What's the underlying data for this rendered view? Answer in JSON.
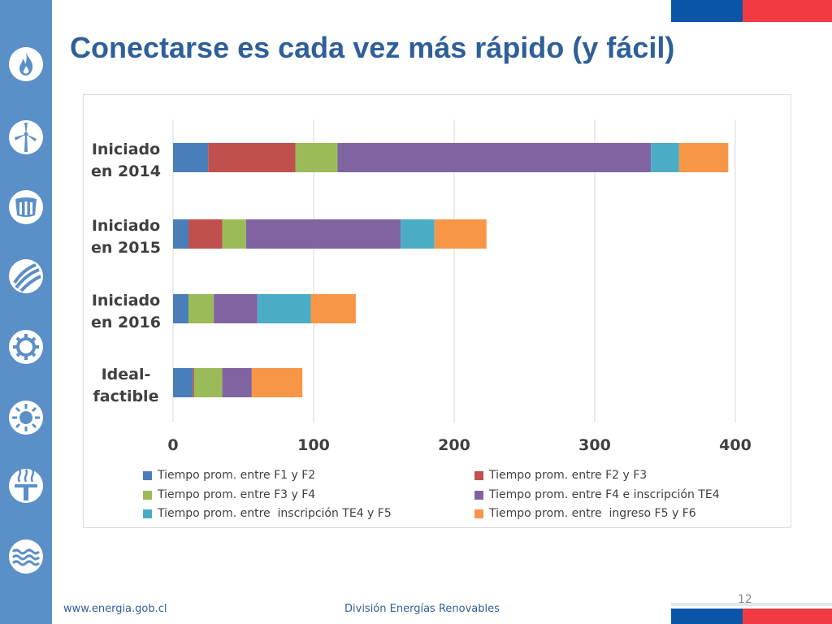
{
  "slide": {
    "title": "Conectarse es cada vez más rápido (y fácil)",
    "footer_url": "www.energia.gob.cl",
    "footer_division": "División Energías Renovables",
    "page_number": "12"
  },
  "sidebar_icons": [
    "flame-icon",
    "wind-turbine-icon",
    "hydro-dam-icon",
    "transmission-lines-icon",
    "efficiency-gear-icon",
    "sun-icon",
    "geothermal-icon",
    "marine-waves-icon"
  ],
  "colors": {
    "sidebar": "#5b8fc7",
    "title": "#2f5f98",
    "flag_blue": "#0a55a8",
    "flag_red": "#f23a43"
  },
  "chart_data": {
    "type": "bar",
    "orientation": "horizontal",
    "stacked": true,
    "categories": [
      "Iniciado en 2014",
      "Iniciado en 2015",
      "Iniciado en 2016",
      "Ideal-factible"
    ],
    "category_lines": [
      [
        "Iniciado",
        "en 2014"
      ],
      [
        "Iniciado",
        "en 2015"
      ],
      [
        "Iniciado",
        "en 2016"
      ],
      [
        "Ideal-",
        "factible"
      ]
    ],
    "series": [
      {
        "name": "Tiempo prom. entre F1 y F2",
        "color": "#4a7ebb",
        "values": [
          25,
          11,
          11,
          14
        ]
      },
      {
        "name": "Tiempo prom. entre F2 y F3",
        "color": "#c0504d",
        "values": [
          62,
          24,
          0,
          1
        ]
      },
      {
        "name": "Tiempo prom. entre F3 y F4",
        "color": "#9bbb59",
        "values": [
          30,
          17,
          18,
          20
        ]
      },
      {
        "name": "Tiempo prom. entre F4 e inscripción TE4",
        "color": "#8064a2",
        "values": [
          223,
          110,
          31,
          21
        ]
      },
      {
        "name": "Tiempo prom. entre  inscripción TE4 y F5",
        "color": "#4bacc6",
        "values": [
          20,
          24,
          38,
          0
        ]
      },
      {
        "name": "Tiempo prom. entre  ingreso F5 y F6",
        "color": "#f79646",
        "values": [
          35,
          37,
          32,
          36
        ]
      }
    ],
    "xlim": [
      0,
      400
    ],
    "xticks": [
      0,
      100,
      200,
      300,
      400
    ],
    "xtick_labels": [
      "0",
      "100",
      "200",
      "300",
      "400"
    ],
    "grid": true,
    "legend_position": "bottom"
  }
}
